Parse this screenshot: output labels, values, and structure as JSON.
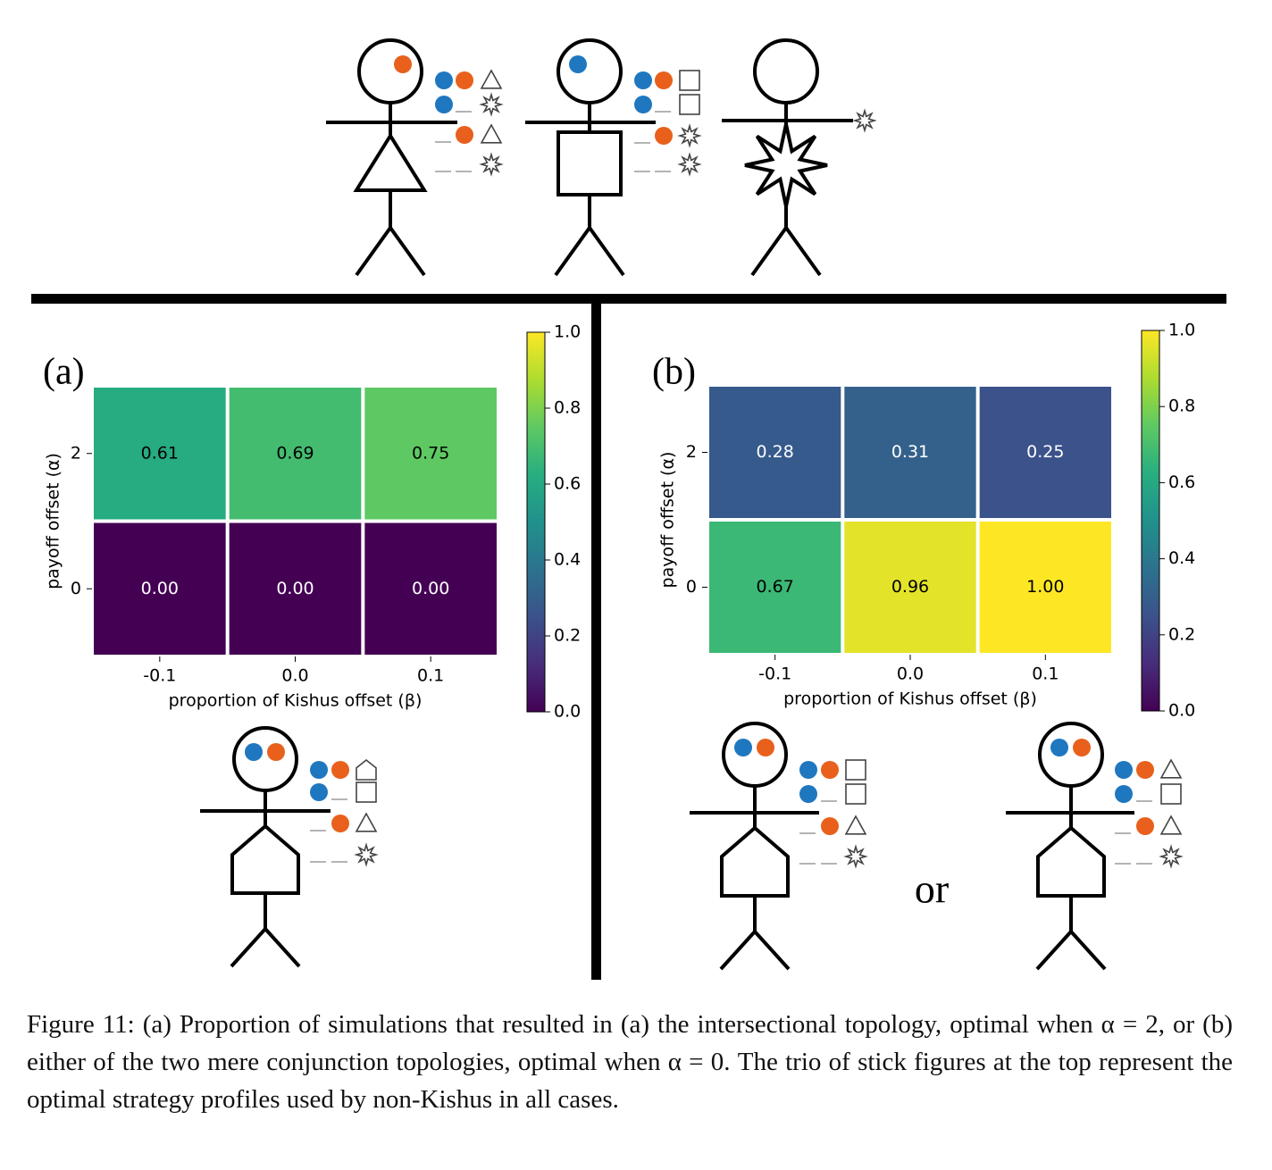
{
  "chart_data": [
    {
      "type": "heatmap",
      "title": "(a)",
      "x_label": "proportion of Kishus offset (β)",
      "y_label": "payoff offset (α)",
      "categories": [
        "-0.1",
        "0.0",
        "0.1"
      ],
      "y_categories": [
        "2",
        "0"
      ],
      "values": [
        [
          0.61,
          0.69,
          0.75
        ],
        [
          0,
          0,
          0
        ]
      ],
      "value_labels": [
        [
          "0.61",
          "0.69",
          "0.75"
        ],
        [
          "0.00",
          "0.00",
          "0.00"
        ]
      ],
      "colormap": "viridis",
      "clim": [
        0,
        1
      ],
      "colorbar_ticks": [
        {
          "value": 0,
          "label": "0.0"
        },
        {
          "value": 0.2,
          "label": "0.2"
        },
        {
          "value": 0.4,
          "label": "0.4"
        },
        {
          "value": 0.6,
          "label": "0.6"
        },
        {
          "value": 0.8,
          "label": "0.8"
        },
        {
          "value": 1,
          "label": "1.0"
        }
      ]
    },
    {
      "type": "heatmap",
      "title": "(b)",
      "x_label": "proportion of Kishus offset (β)",
      "y_label": "payoff offset (α)",
      "categories": [
        "-0.1",
        "0.0",
        "0.1"
      ],
      "y_categories": [
        "2",
        "0"
      ],
      "values": [
        [
          0.28,
          0.31,
          0.25
        ],
        [
          0.67,
          0.96,
          1
        ]
      ],
      "value_labels": [
        [
          "0.28",
          "0.31",
          "0.25"
        ],
        [
          "0.67",
          "0.96",
          "1.00"
        ]
      ],
      "colormap": "viridis",
      "clim": [
        0,
        1
      ],
      "colorbar_ticks": [
        {
          "value": 0,
          "label": "0.0"
        },
        {
          "value": 0.2,
          "label": "0.2"
        },
        {
          "value": 0.4,
          "label": "0.4"
        },
        {
          "value": 0.6,
          "label": "0.6"
        },
        {
          "value": 0.8,
          "label": "0.8"
        },
        {
          "value": 1,
          "label": "1.0"
        }
      ]
    }
  ],
  "figure": {
    "connector_text": "or",
    "caption": "Figure 11: (a) Proportion of simulations that resulted in (a) the intersectional topology, optimal when α = 2, or (b) either of the two mere conjunction topologies, optimal when α = 0. The trio of stick figures at the top represent the optimal strategy profiles used by non-Kishus in all cases."
  }
}
